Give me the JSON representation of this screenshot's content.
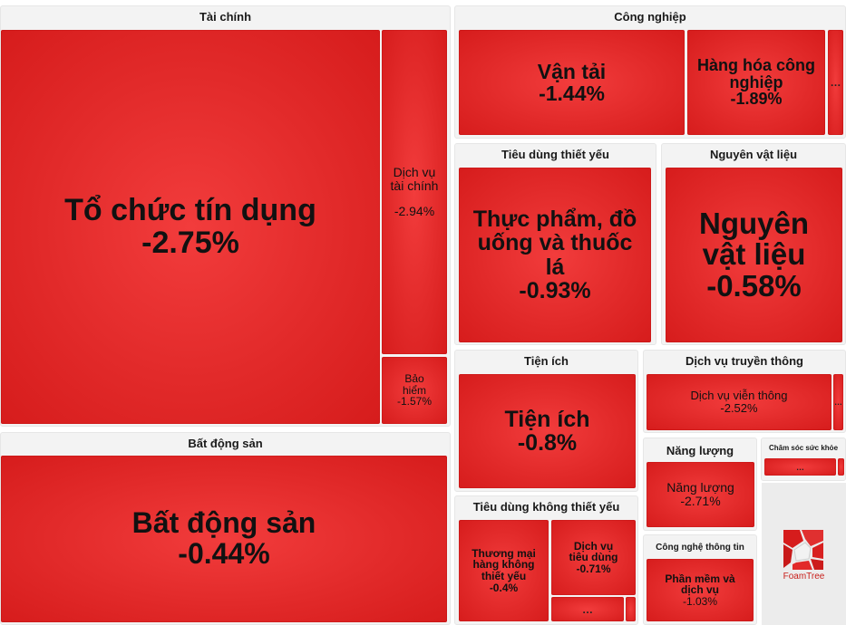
{
  "chart_data": {
    "type": "treemap",
    "groups": [
      {
        "name": "Tài chính",
        "children": [
          {
            "name": "Tổ chức tín dụng",
            "change": "-2.75%"
          },
          {
            "name": "Dịch vụ tài chính",
            "change": "-2.94%"
          },
          {
            "name": "Bảo hiểm",
            "change": "-1.57%"
          }
        ]
      },
      {
        "name": "Bất động sản",
        "children": [
          {
            "name": "Bất động sản",
            "change": "-0.44%"
          }
        ]
      },
      {
        "name": "Công nghiệp",
        "children": [
          {
            "name": "Vận tải",
            "change": "-1.44%"
          },
          {
            "name": "Hàng hóa công nghiệp",
            "change": "-1.89%"
          }
        ]
      },
      {
        "name": "Tiêu dùng thiết yếu",
        "children": [
          {
            "name": "Thực phẩm, đồ uống và thuốc lá",
            "change": "-0.93%"
          }
        ]
      },
      {
        "name": "Nguyên vật liệu",
        "children": [
          {
            "name": "Nguyên vật liệu",
            "change": "-0.58%"
          }
        ]
      },
      {
        "name": "Tiện ích",
        "children": [
          {
            "name": "Tiện ích",
            "change": "-0.8%"
          }
        ]
      },
      {
        "name": "Dịch vụ truyền thông",
        "children": [
          {
            "name": "Dịch vụ viễn thông",
            "change": "-2.52%"
          }
        ]
      },
      {
        "name": "Năng lượng",
        "children": [
          {
            "name": "Năng lượng",
            "change": "-2.71%"
          }
        ]
      },
      {
        "name": "Chăm sóc sức khỏe",
        "children": []
      },
      {
        "name": "Tiêu dùng không thiết yếu",
        "children": [
          {
            "name": "Thương mại hàng không thiết yếu",
            "change": "-0.4%"
          },
          {
            "name": "Dịch vụ tiêu dùng",
            "change": "-0.71%"
          }
        ]
      },
      {
        "name": "Công nghệ thông tin",
        "children": [
          {
            "name": "Phần mềm và dịch vụ",
            "change": "-1.03%"
          }
        ]
      }
    ],
    "more_label": "…",
    "tile_color": "#e32a2a"
  },
  "branding": {
    "label": "FoamTree",
    "color": "#c8201c"
  }
}
